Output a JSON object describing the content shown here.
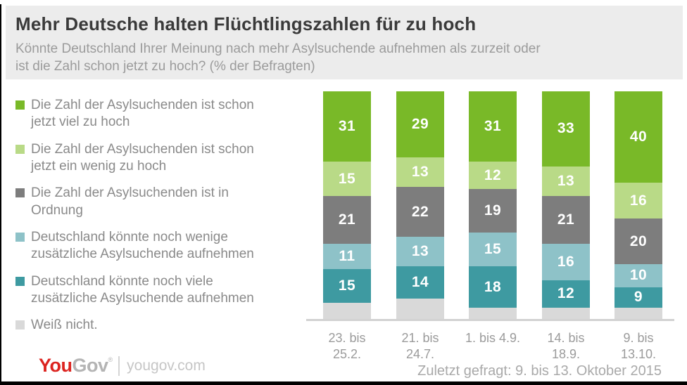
{
  "header": {
    "title": "Mehr Deutsche halten Flüchtlingszahlen für zu hoch",
    "subtitle": "Könnte Deutschland Ihrer Meinung nach mehr Asylsuchende aufnehmen als zurzeit oder ist die Zahl schon jetzt zu hoch? (% der Befragten)",
    "subtitle_lines": [
      "Könnte Deutschland Ihrer Meinung nach mehr Asylsuchende aufnehmen als zurzeit oder",
      "ist die Zahl schon jetzt zu hoch? (% der Befragten)"
    ]
  },
  "legend": {
    "items": [
      {
        "series": 0,
        "lines": [
          "Die Zahl der Asylsuchenden ist schon",
          "jetzt viel zu hoch"
        ]
      },
      {
        "series": 1,
        "lines": [
          "Die Zahl der Asylsuchenden ist schon",
          "jetzt ein wenig zu hoch"
        ]
      },
      {
        "series": 2,
        "lines": [
          "Die Zahl der Asylsuchenden ist in",
          "Ordnung"
        ]
      },
      {
        "series": 3,
        "lines": [
          "Deutschland könnte noch wenige",
          "zusätzliche Asylsuchende aufnehmen"
        ]
      },
      {
        "series": 4,
        "lines": [
          "Deutschland könnte noch viele",
          "zusätzliche Asylsuchende aufnehmen"
        ]
      },
      {
        "series": 5,
        "lines": [
          "Weiß nicht."
        ]
      }
    ]
  },
  "chart_data": {
    "type": "bar",
    "subtype": "stacked-vertical",
    "unit": "% der Befragten",
    "stack_total": 100,
    "grid": false,
    "legend_position": "left",
    "categories": [
      "23. bis 25.2.",
      "21. bis 24.7.",
      "1. bis 4.9.",
      "14. bis 18.9.",
      "9. bis 13.10."
    ],
    "category_lines": [
      [
        "23. bis",
        "25.2."
      ],
      [
        "21. bis",
        "24.7."
      ],
      [
        "1. bis 4.9."
      ],
      [
        "14. bis",
        "18.9."
      ],
      [
        "9. bis",
        "13.10."
      ]
    ],
    "series": [
      {
        "name": "Die Zahl der Asylsuchenden ist schon jetzt viel zu hoch",
        "color": "#79b928",
        "values": [
          31,
          29,
          31,
          33,
          40
        ],
        "labels_visible": true
      },
      {
        "name": "Die Zahl der Asylsuchenden ist schon jetzt ein wenig zu hoch",
        "color": "#b9da87",
        "values": [
          15,
          13,
          12,
          13,
          16
        ],
        "labels_visible": true
      },
      {
        "name": "Die Zahl der Asylsuchenden ist in Ordnung",
        "color": "#7d7d7d",
        "values": [
          21,
          22,
          19,
          21,
          20
        ],
        "labels_visible": true
      },
      {
        "name": "Deutschland könnte noch wenige zusätzliche Asylsuchende aufnehmen",
        "color": "#8ec2c8",
        "values": [
          11,
          13,
          15,
          16,
          10
        ],
        "labels_visible": true
      },
      {
        "name": "Deutschland könnte noch viele zusätzliche Asylsuchende aufnehmen",
        "color": "#3e9aa1",
        "values": [
          15,
          14,
          18,
          12,
          9
        ],
        "labels_visible": true
      },
      {
        "name": "Weiß nicht.",
        "color": "#d9d9d9",
        "values": [
          7,
          9,
          5,
          5,
          5
        ],
        "labels_visible": false
      }
    ],
    "value_label_color": "#ffffff",
    "axis_line_color": "#d2d2d2"
  },
  "footer": {
    "note": "Zuletzt gefragt: 9. bis 13. Oktober 2015",
    "logo_you": "You",
    "logo_gov": "Gov",
    "logo_mark": "®",
    "logo_domain": "yougov.com"
  },
  "colors": {
    "header_background": "#ececec",
    "title_text": "#3a3a3a",
    "subtitle_text": "#9b9b9b",
    "legend_text": "#8a8a8a",
    "axis_label_text": "#9b9b9b",
    "footer_note_text": "#a9a9a9",
    "logo_red": "#dc2420"
  }
}
